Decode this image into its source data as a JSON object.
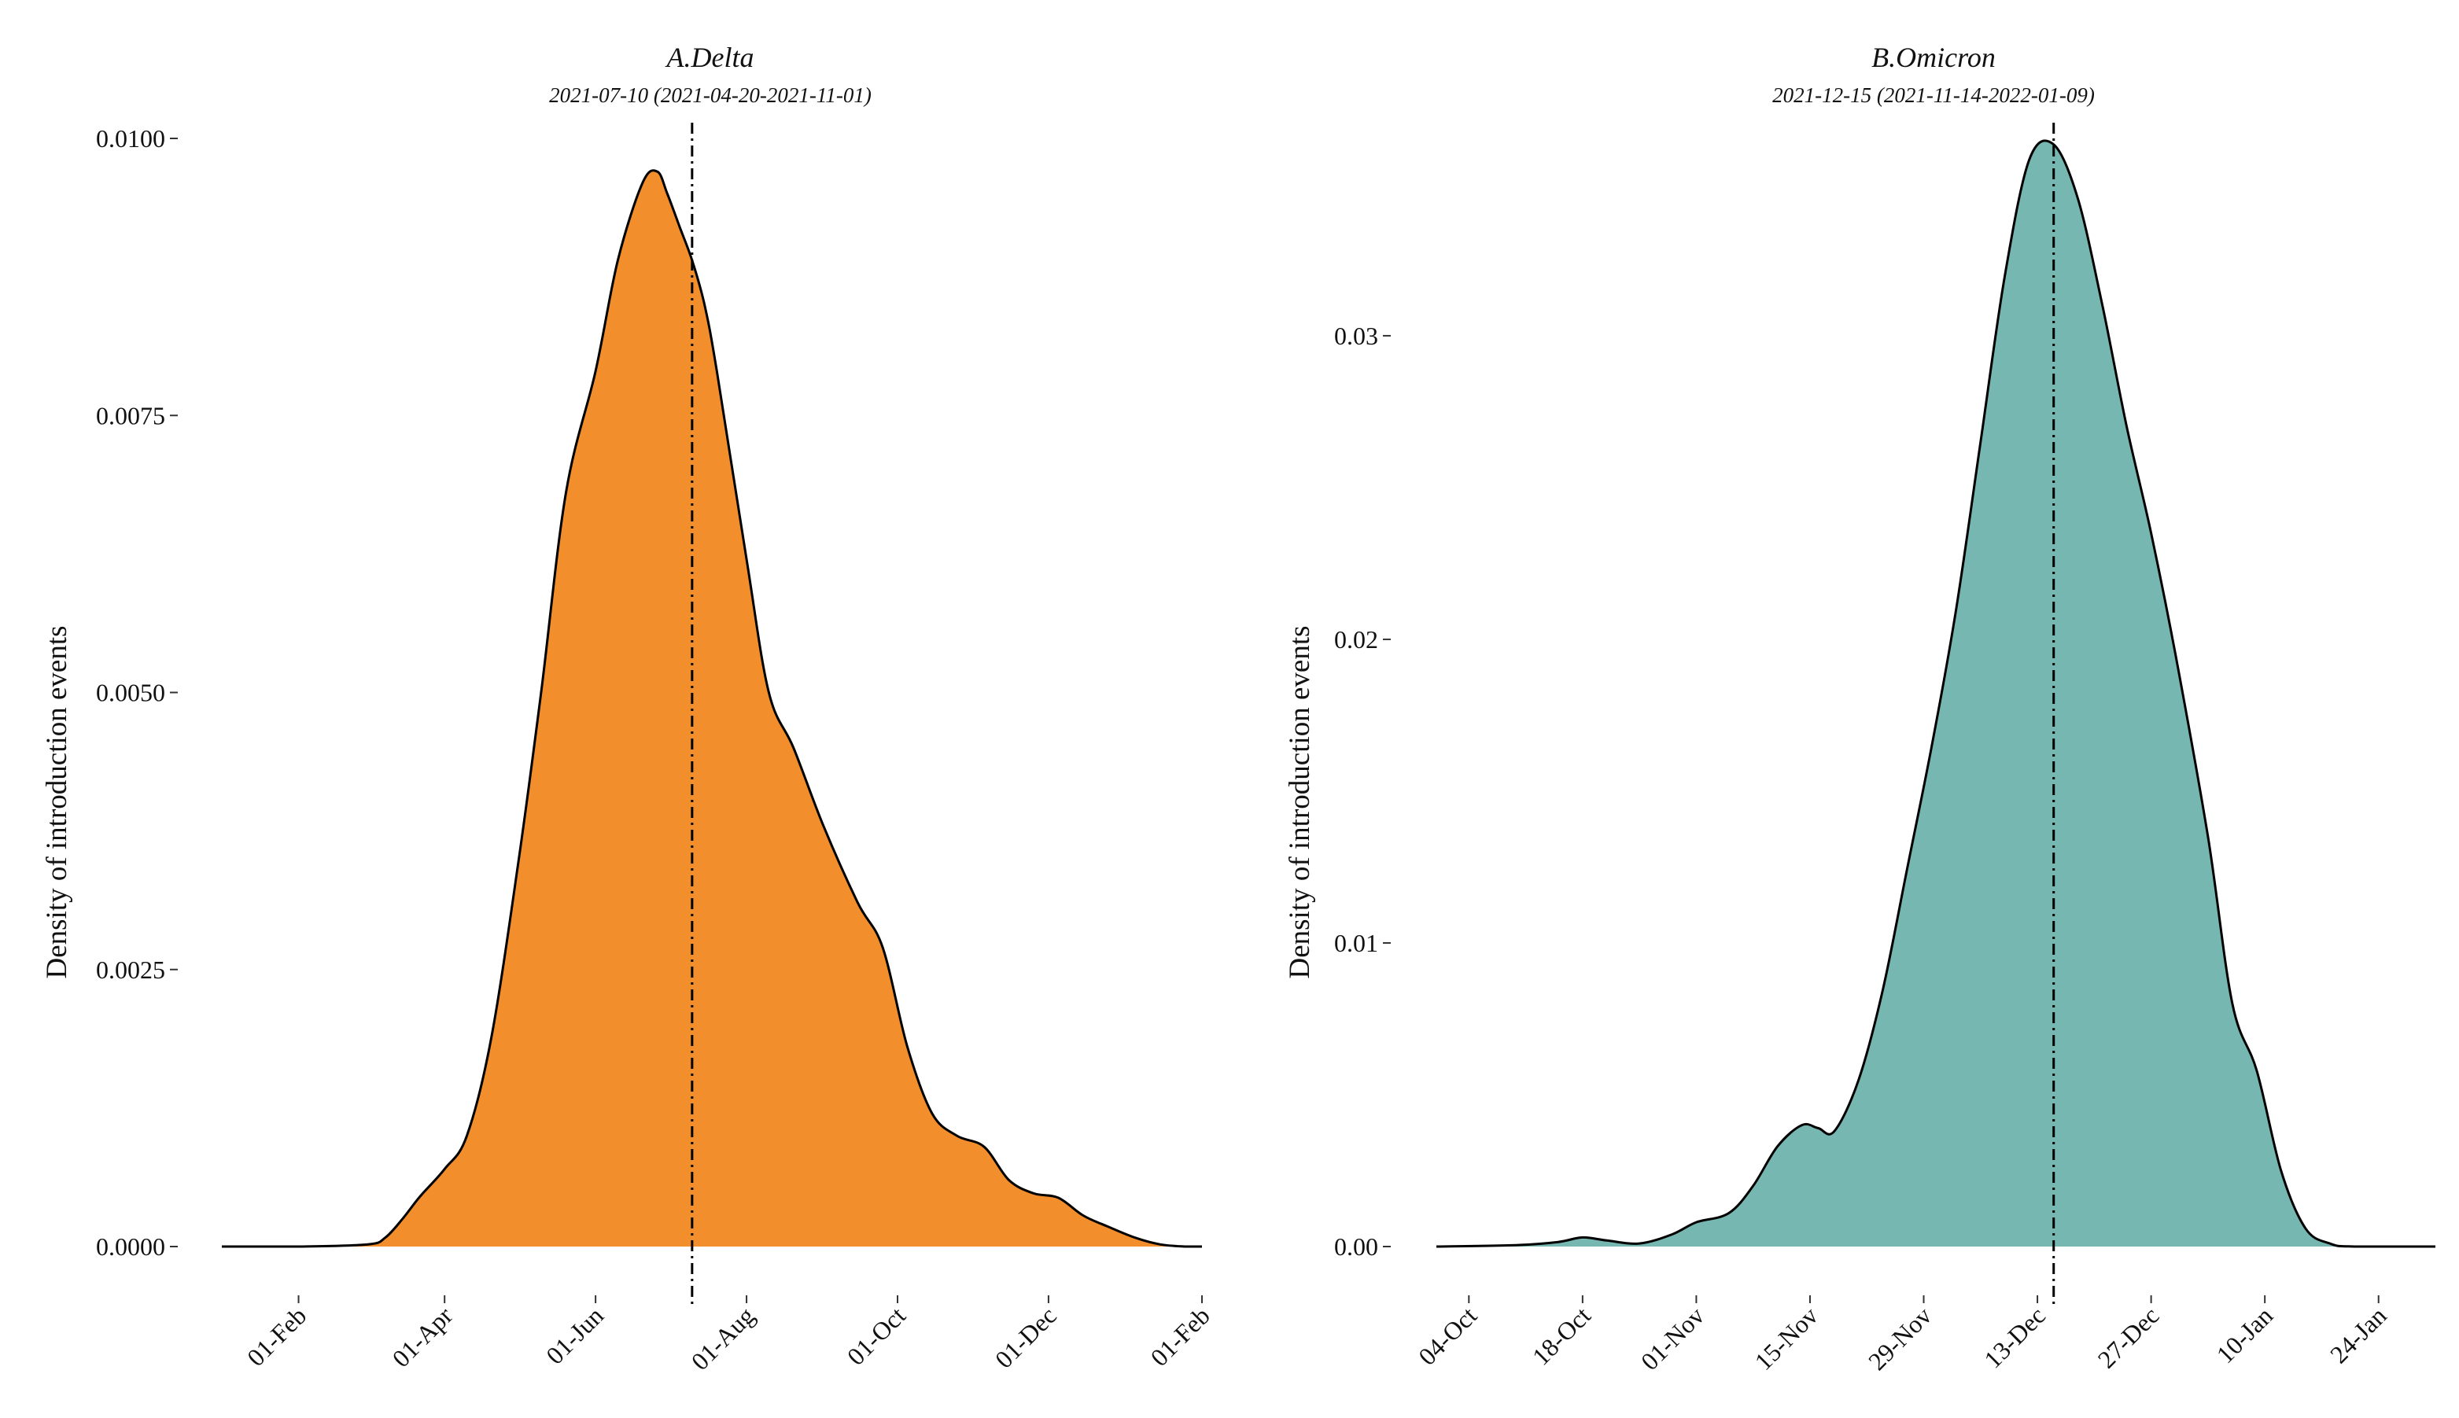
{
  "chart_data": [
    {
      "type": "area",
      "title": "A.Delta",
      "subtitle": "2021-07-10 (2021-04-20-2021-11-01)",
      "ylabel": "Density of introduction events",
      "xlabel": "",
      "fill_color": "#F28E2B",
      "line_color": "#000000",
      "xlim": [
        "2021-01-01",
        "2022-02-01"
      ],
      "ylim": [
        0,
        0.01
      ],
      "y_ticks": [
        0.0,
        0.0025,
        0.005,
        0.0075,
        0.01
      ],
      "y_tick_labels": [
        "0.0000",
        "0.0025",
        "0.0050",
        "0.0075",
        "0.0100"
      ],
      "x_ticks": [
        "2021-02-01",
        "2021-04-01",
        "2021-06-01",
        "2021-08-01",
        "2021-10-01",
        "2021-12-01",
        "2022-02-01"
      ],
      "x_tick_labels": [
        "01-Feb",
        "01-Apr",
        "01-Jun",
        "01-Aug",
        "01-Oct",
        "01-Dec",
        "01-Feb"
      ],
      "median_line": "2021-07-10",
      "grid": false,
      "x": [
        "2021-01-01",
        "2021-02-01",
        "2021-03-01",
        "2021-03-08",
        "2021-03-15",
        "2021-03-22",
        "2021-04-01",
        "2021-04-10",
        "2021-04-20",
        "2021-05-01",
        "2021-05-10",
        "2021-05-20",
        "2021-06-01",
        "2021-06-10",
        "2021-06-20",
        "2021-06-26",
        "2021-06-30",
        "2021-07-05",
        "2021-07-10",
        "2021-07-15",
        "2021-07-20",
        "2021-08-01",
        "2021-08-10",
        "2021-08-20",
        "2021-09-01",
        "2021-09-15",
        "2021-09-25",
        "2021-10-05",
        "2021-10-15",
        "2021-10-25",
        "2021-11-05",
        "2021-11-15",
        "2021-11-25",
        "2021-12-05",
        "2021-12-15",
        "2021-12-25",
        "2022-01-05",
        "2022-01-15",
        "2022-01-25",
        "2022-02-01"
      ],
      "y": [
        0.0,
        0.0,
        2e-05,
        8e-05,
        0.00025,
        0.00045,
        0.0007,
        0.001,
        0.0019,
        0.0035,
        0.005,
        0.0068,
        0.0079,
        0.0089,
        0.0096,
        0.0097,
        0.0095,
        0.0092,
        0.0089,
        0.0085,
        0.0079,
        0.0062,
        0.005,
        0.0045,
        0.0038,
        0.0031,
        0.0027,
        0.0018,
        0.0012,
        0.001,
        0.0009,
        0.0006,
        0.00048,
        0.00044,
        0.00028,
        0.00018,
        8e-05,
        2e-05,
        0.0,
        0.0
      ]
    },
    {
      "type": "area",
      "title": "B.Omicron",
      "subtitle": "2021-12-15 (2021-11-14-2022-01-09)",
      "ylabel": "Density of introduction events",
      "xlabel": "",
      "fill_color": "#76B7B2",
      "line_color": "#000000",
      "xlim": [
        "2021-09-30",
        "2022-01-31"
      ],
      "ylim": [
        0,
        0.0365
      ],
      "y_ticks": [
        0.0,
        0.01,
        0.02,
        0.03
      ],
      "y_tick_labels": [
        "0.00",
        "0.01",
        "0.02",
        "0.03"
      ],
      "x_ticks": [
        "2021-10-04",
        "2021-10-18",
        "2021-11-01",
        "2021-11-15",
        "2021-11-29",
        "2021-12-13",
        "2021-12-27",
        "2022-01-10",
        "2022-01-24"
      ],
      "x_tick_labels": [
        "04-Oct",
        "18-Oct",
        "01-Nov",
        "15-Nov",
        "29-Nov",
        "13-Dec",
        "27-Dec",
        "10-Jan",
        "24-Jan"
      ],
      "median_line": "2021-12-15",
      "grid": false,
      "x": [
        "2021-09-30",
        "2021-10-10",
        "2021-10-15",
        "2021-10-18",
        "2021-10-21",
        "2021-10-25",
        "2021-10-29",
        "2021-11-01",
        "2021-11-05",
        "2021-11-08",
        "2021-11-11",
        "2021-11-14",
        "2021-11-16",
        "2021-11-18",
        "2021-11-21",
        "2021-11-24",
        "2021-11-27",
        "2021-11-30",
        "2021-12-03",
        "2021-12-06",
        "2021-12-09",
        "2021-12-12",
        "2021-12-15",
        "2021-12-18",
        "2021-12-21",
        "2021-12-24",
        "2021-12-27",
        "2021-12-30",
        "2022-01-03",
        "2022-01-06",
        "2022-01-09",
        "2022-01-12",
        "2022-01-15",
        "2022-01-18",
        "2022-01-21",
        "2022-01-31"
      ],
      "y": [
        0.0,
        5e-05,
        0.00015,
        0.0003,
        0.0002,
        0.0001,
        0.0004,
        0.0008,
        0.0011,
        0.002,
        0.0033,
        0.004,
        0.0039,
        0.0038,
        0.0055,
        0.0085,
        0.0125,
        0.0165,
        0.021,
        0.0265,
        0.032,
        0.0358,
        0.0363,
        0.0345,
        0.031,
        0.027,
        0.0235,
        0.0195,
        0.0135,
        0.008,
        0.0058,
        0.0025,
        0.0006,
        0.0001,
        0.0,
        0.0
      ]
    }
  ]
}
